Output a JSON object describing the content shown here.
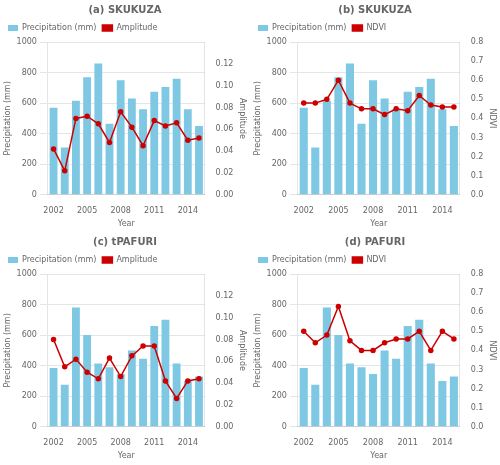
{
  "chart_data": [
    {
      "type": "bar",
      "title": "(a) SKUKUZA",
      "xlabel": "Year",
      "ylabel": "Precipitation (mm)",
      "y2label": "Amplitude",
      "categories": [
        "2002",
        null,
        null,
        "2005",
        null,
        null,
        "2008",
        null,
        null,
        "2011",
        null,
        null,
        "2014",
        null
      ],
      "series": [
        {
          "name": "Precipitation (mm)",
          "type": "bar",
          "color": "#7ec8e3",
          "values": [
            570,
            310,
            615,
            770,
            860,
            465,
            750,
            630,
            560,
            675,
            705,
            760,
            560,
            450
          ]
        },
        {
          "name": "Amplitude",
          "type": "line",
          "color": "#cc0000",
          "marker": "circle",
          "axis": "y2",
          "values": [
            0.042,
            0.022,
            0.07,
            0.072,
            0.065,
            0.048,
            0.076,
            0.062,
            0.045,
            0.068,
            0.063,
            0.066,
            0.05,
            0.052
          ]
        }
      ],
      "ylim": [
        0,
        1000
      ],
      "yticks": [
        0,
        200,
        400,
        600,
        800,
        1000
      ],
      "y2lim": [
        0.0,
        0.14
      ],
      "y2ticks": [
        {
          "value": 0.0,
          "label": "0.00"
        },
        0.02,
        0.04,
        0.06,
        0.08,
        {
          "value": 0.1,
          "label": "0.10"
        },
        0.12
      ],
      "grid": true,
      "legend": "upper left"
    },
    {
      "type": "bar",
      "title": "(b) SKUKUZA",
      "xlabel": "Year",
      "ylabel": "Precipitation (mm)",
      "y2label": "NDVI",
      "categories": [
        "2002",
        null,
        null,
        "2005",
        null,
        null,
        "2008",
        null,
        null,
        "2011",
        null,
        null,
        "2014",
        null
      ],
      "series": [
        {
          "name": "Precipitation (mm)",
          "type": "bar",
          "color": "#7ec8e3",
          "values": [
            570,
            310,
            615,
            770,
            860,
            465,
            750,
            630,
            560,
            675,
            705,
            760,
            560,
            450
          ]
        },
        {
          "name": "NDVI",
          "type": "line",
          "color": "#cc0000",
          "marker": "circle",
          "axis": "y2",
          "values": [
            0.48,
            0.48,
            0.5,
            0.6,
            0.48,
            0.45,
            0.45,
            0.42,
            0.45,
            0.44,
            0.52,
            0.47,
            0.46,
            0.46
          ]
        }
      ],
      "ylim": [
        0,
        1000
      ],
      "yticks": [
        0,
        200,
        400,
        600,
        800,
        1000
      ],
      "y2lim": [
        0.0,
        0.8
      ],
      "y2ticks": [
        {
          "value": 0.0,
          "label": "0.0"
        },
        0.1,
        0.2,
        0.3,
        0.4,
        0.5,
        0.6,
        0.7,
        0.8
      ],
      "grid": true,
      "legend": "upper left"
    },
    {
      "type": "bar",
      "title": "(c) tPAFURI",
      "xlabel": "Year",
      "ylabel": "Precipitation (mm)",
      "y2label": "Amplitude",
      "categories": [
        "2002",
        null,
        null,
        "2005",
        null,
        null,
        "2008",
        null,
        null,
        "2011",
        null,
        null,
        "2014",
        null
      ],
      "series": [
        {
          "name": "Precipitation (mm)",
          "type": "bar",
          "color": "#7ec8e3",
          "values": [
            385,
            275,
            780,
            600,
            415,
            390,
            345,
            500,
            445,
            660,
            700,
            415,
            300,
            330
          ]
        },
        {
          "name": "Amplitude",
          "type": "line",
          "color": "#cc0000",
          "marker": "circle",
          "axis": "y2",
          "values": [
            0.08,
            0.055,
            0.062,
            0.05,
            0.044,
            0.063,
            0.046,
            0.065,
            0.074,
            0.074,
            0.042,
            0.026,
            0.042,
            0.044
          ]
        }
      ],
      "ylim": [
        0,
        1000
      ],
      "yticks": [
        0,
        200,
        400,
        600,
        800,
        1000
      ],
      "y2lim": [
        0.0,
        0.14
      ],
      "y2ticks": [
        {
          "value": 0.0,
          "label": "0.00"
        },
        0.02,
        0.04,
        0.06,
        0.08,
        {
          "value": 0.1,
          "label": "0.10"
        },
        0.12
      ],
      "grid": true,
      "legend": "upper left"
    },
    {
      "type": "bar",
      "title": "(d) PAFURI",
      "xlabel": "Year",
      "ylabel": "Precipitation (mm)",
      "y2label": "NDVI",
      "categories": [
        "2002",
        null,
        null,
        "2005",
        null,
        null,
        "2008",
        null,
        null,
        "2011",
        null,
        null,
        "2014",
        null
      ],
      "series": [
        {
          "name": "Precipitation (mm)",
          "type": "bar",
          "color": "#7ec8e3",
          "values": [
            385,
            275,
            780,
            600,
            415,
            390,
            345,
            500,
            445,
            660,
            700,
            415,
            300,
            330
          ]
        },
        {
          "name": "NDVI",
          "type": "line",
          "color": "#cc0000",
          "marker": "circle",
          "axis": "y2",
          "values": [
            0.5,
            0.44,
            0.48,
            0.63,
            0.45,
            0.4,
            0.4,
            0.44,
            0.46,
            0.46,
            0.5,
            0.4,
            0.5,
            0.46
          ]
        }
      ],
      "ylim": [
        0,
        1000
      ],
      "yticks": [
        0,
        200,
        400,
        600,
        800,
        1000
      ],
      "y2lim": [
        0.0,
        0.8
      ],
      "y2ticks": [
        {
          "value": 0.0,
          "label": "0.0"
        },
        0.1,
        0.2,
        0.3,
        0.4,
        0.5,
        0.6,
        0.7,
        0.8
      ],
      "grid": true,
      "legend": "upper left"
    }
  ]
}
